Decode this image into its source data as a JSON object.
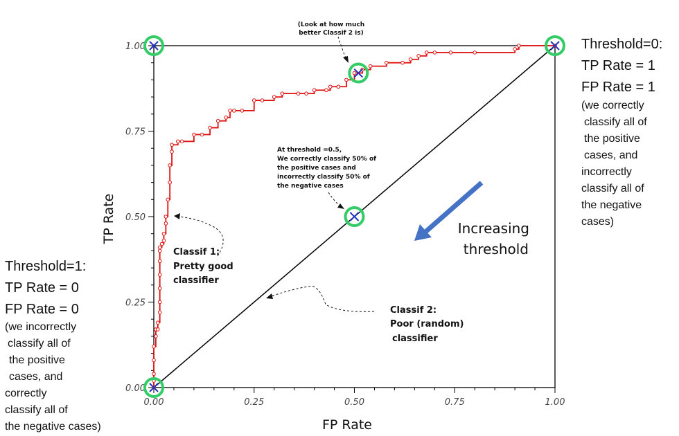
{
  "chart_data": {
    "type": "line",
    "xlabel": "FP Rate",
    "ylabel": "TP Rate",
    "xlim": [
      0,
      1
    ],
    "ylim": [
      0,
      1
    ],
    "xticks": [
      "0.00",
      "0.25",
      "0.50",
      "0.75",
      "1.00"
    ],
    "yticks": [
      "0.00",
      "0.25",
      "0.50",
      "0.75",
      "1.00"
    ],
    "grid": false,
    "series": [
      {
        "name": "Classif 1",
        "color": "#e01010",
        "x": [
          0,
          0,
          0,
          0,
          0,
          0.005,
          0.005,
          0.005,
          0.01,
          0.01,
          0.015,
          0.015,
          0.015,
          0.015,
          0.015,
          0.015,
          0.015,
          0.02,
          0.025,
          0.025,
          0.03,
          0.03,
          0.035,
          0.04,
          0.04,
          0.045,
          0.045,
          0.06,
          0.07,
          0.1,
          0.12,
          0.14,
          0.16,
          0.18,
          0.19,
          0.2,
          0.22,
          0.25,
          0.27,
          0.3,
          0.32,
          0.36,
          0.38,
          0.4,
          0.43,
          0.44,
          0.46,
          0.48,
          0.5,
          0.52,
          0.54,
          0.58,
          0.62,
          0.64,
          0.66,
          0.68,
          0.7,
          0.74,
          0.8,
          0.9,
          0.91,
          1.0
        ],
        "y": [
          0,
          0.02,
          0.04,
          0.08,
          0.12,
          0.15,
          0.17,
          0.17,
          0.17,
          0.19,
          0.22,
          0.25,
          0.29,
          0.33,
          0.37,
          0.4,
          0.41,
          0.42,
          0.43,
          0.45,
          0.48,
          0.5,
          0.55,
          0.6,
          0.65,
          0.69,
          0.71,
          0.72,
          0.72,
          0.74,
          0.74,
          0.76,
          0.78,
          0.79,
          0.81,
          0.81,
          0.81,
          0.84,
          0.84,
          0.85,
          0.86,
          0.86,
          0.86,
          0.87,
          0.87,
          0.88,
          0.88,
          0.9,
          0.92,
          0.93,
          0.94,
          0.95,
          0.95,
          0.96,
          0.97,
          0.98,
          0.98,
          0.98,
          0.98,
          0.99,
          1.0,
          1.0
        ]
      },
      {
        "name": "Classif 2",
        "color": "#000000",
        "x": [
          0,
          1
        ],
        "y": [
          0,
          1
        ]
      }
    ],
    "highlighted_points": [
      {
        "x": 0,
        "y": 0
      },
      {
        "x": 0,
        "y": 1
      },
      {
        "x": 1,
        "y": 1
      },
      {
        "x": 0.5,
        "y": 0.5
      },
      {
        "x": 0.51,
        "y": 0.92
      }
    ]
  },
  "annotations": {
    "look": [
      "(Look at how much",
      "better Classif 2 is)"
    ],
    "mid": [
      "At threshold =0.5,",
      "We correctly classify 50% of",
      "the positive cases and",
      "incorrectly classify 50% of",
      "the negative cases"
    ],
    "classif1": [
      "Classif 1:",
      "Pretty good",
      "classifier"
    ],
    "classif2": [
      "Classif 2:",
      "Poor (random)",
      "classifier"
    ],
    "increasing": [
      "Increasing",
      "threshold"
    ]
  },
  "side_notes": {
    "right_big": [
      "Threshold=0:",
      "TP Rate = 1",
      "FP Rate = 1"
    ],
    "right_small": [
      "(we correctly",
      "classify all of",
      "the positive",
      "cases, and",
      "incorrectly",
      "classify all of",
      "the negative",
      "cases)"
    ],
    "left_big": [
      "Threshold=1:",
      "TP Rate = 0",
      "FP Rate = 0"
    ],
    "left_small": [
      "(we incorrectly",
      "classify all of",
      "the positive",
      "cases, and",
      "correctly",
      "classify all of",
      "the negative cases)"
    ]
  },
  "colors": {
    "highlight_ring": "#33cc66",
    "cross": "#2233bb",
    "arrow": "#4472c4"
  }
}
